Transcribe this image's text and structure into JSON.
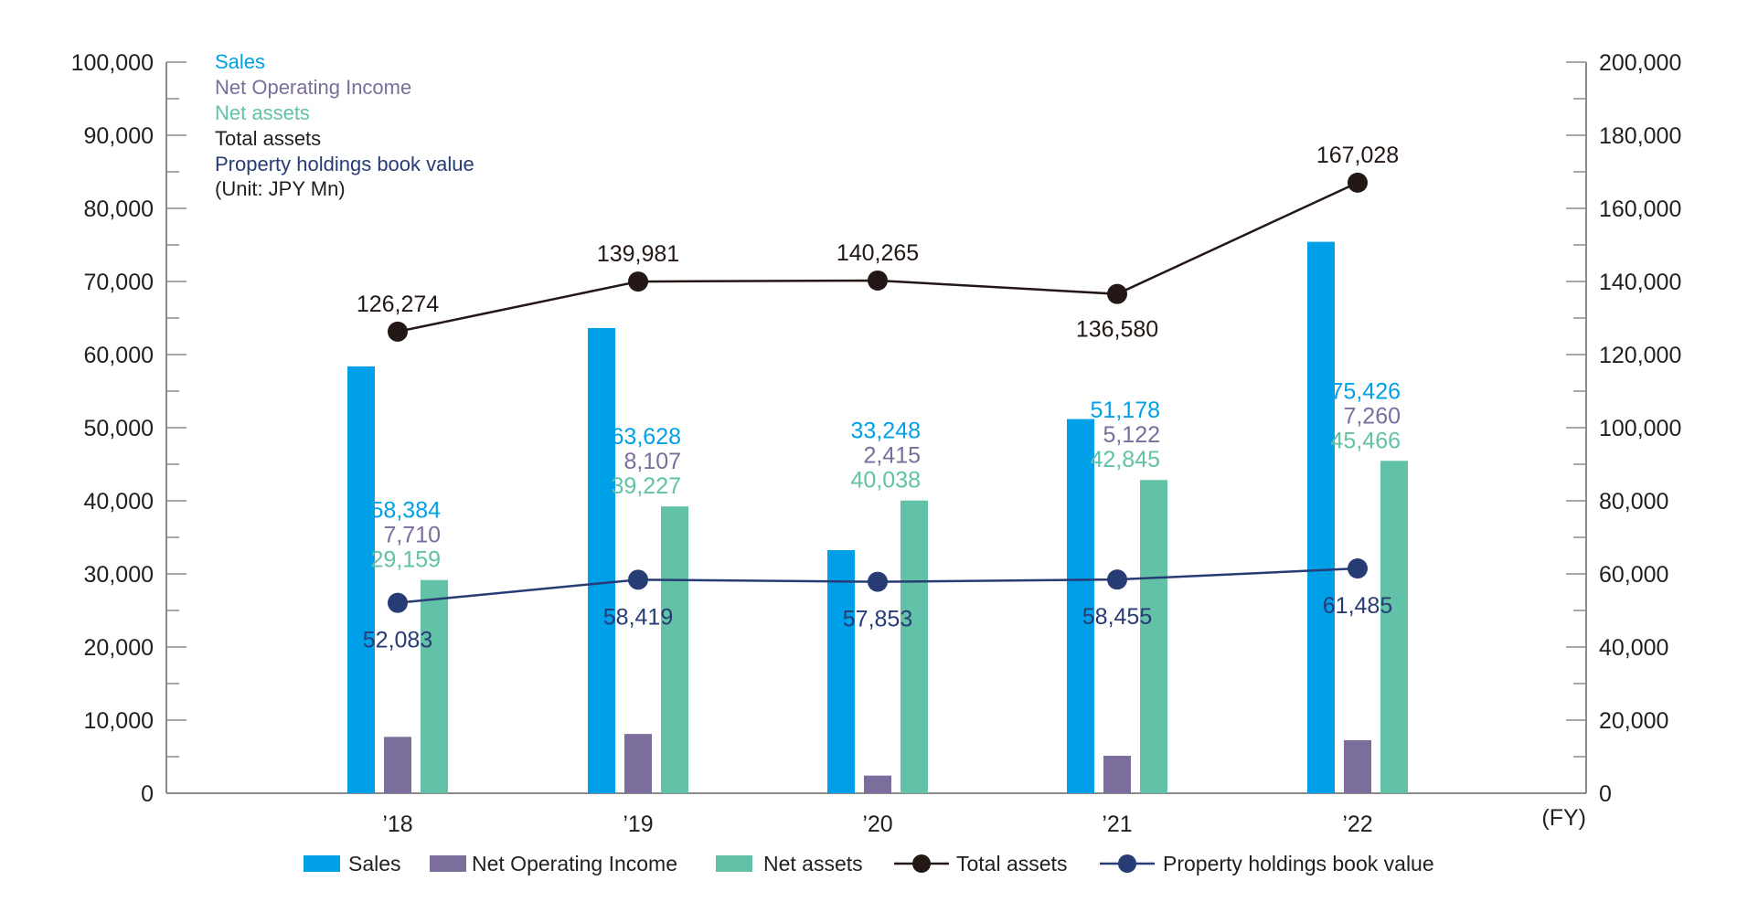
{
  "chart_data": {
    "type": "bar",
    "unit_note": "(Unit: JPY Mn)",
    "x_unit": "(FY)",
    "categories": [
      "’18",
      "’19",
      "’20",
      "’21",
      "’22"
    ],
    "left_axis": {
      "ylim": [
        0,
        100000
      ],
      "ticks": [
        "0",
        "10,000",
        "20,000",
        "30,000",
        "40,000",
        "50,000",
        "60,000",
        "70,000",
        "80,000",
        "90,000",
        "100,000"
      ]
    },
    "right_axis": {
      "ylim": [
        0,
        200000
      ],
      "ticks": [
        "0",
        "20,000",
        "40,000",
        "60,000",
        "80,000",
        "100,000",
        "120,000",
        "140,000",
        "160,000",
        "180,000",
        "200,000"
      ]
    },
    "series": [
      {
        "name": "Sales",
        "kind": "bar",
        "axis": "left",
        "color": "#00a0e9",
        "values": [
          58384,
          63628,
          33248,
          51178,
          75426
        ],
        "labels": [
          "58,384",
          "63,628",
          "33,248",
          "51,178",
          "75,426"
        ]
      },
      {
        "name": "Net Operating Income",
        "kind": "bar",
        "axis": "left",
        "color": "#7b6d9c",
        "values": [
          7710,
          8107,
          2415,
          5122,
          7260
        ],
        "labels": [
          "7,710",
          "8,107",
          "2,415",
          "5,122",
          "7,260"
        ]
      },
      {
        "name": "Net assets",
        "kind": "bar",
        "axis": "left",
        "color": "#62c2a8",
        "values": [
          29159,
          39227,
          40038,
          42845,
          45466
        ],
        "labels": [
          "29,159",
          "39,227",
          "40,038",
          "42,845",
          "45,466"
        ]
      },
      {
        "name": "Total assets",
        "kind": "line",
        "axis": "right",
        "color": "#231815",
        "values": [
          126274,
          139981,
          140265,
          136580,
          167028
        ],
        "labels": [
          "126,274",
          "139,981",
          "140,265",
          "136,580",
          "167,028"
        ]
      },
      {
        "name": "Property holdings book value",
        "kind": "line",
        "axis": "right",
        "color": "#273c75",
        "values": [
          52083,
          58419,
          57853,
          58455,
          61485
        ],
        "labels": [
          "52,083",
          "58,419",
          "57,853",
          "58,455",
          "61,485"
        ]
      }
    ],
    "info_box": {
      "lines": [
        "Sales",
        "Net Operating Income",
        "Net assets",
        "Total assets",
        "Property holdings book value"
      ],
      "colors": [
        "#00a0e9",
        "#7b6d9c",
        "#62c2a8",
        "#231f20",
        "#273c75"
      ]
    },
    "legend": {
      "position": "bottom",
      "items": [
        "Sales",
        "Net Operating Income",
        "Net assets",
        "Total assets",
        "Property holdings book value"
      ]
    },
    "grid": false
  }
}
